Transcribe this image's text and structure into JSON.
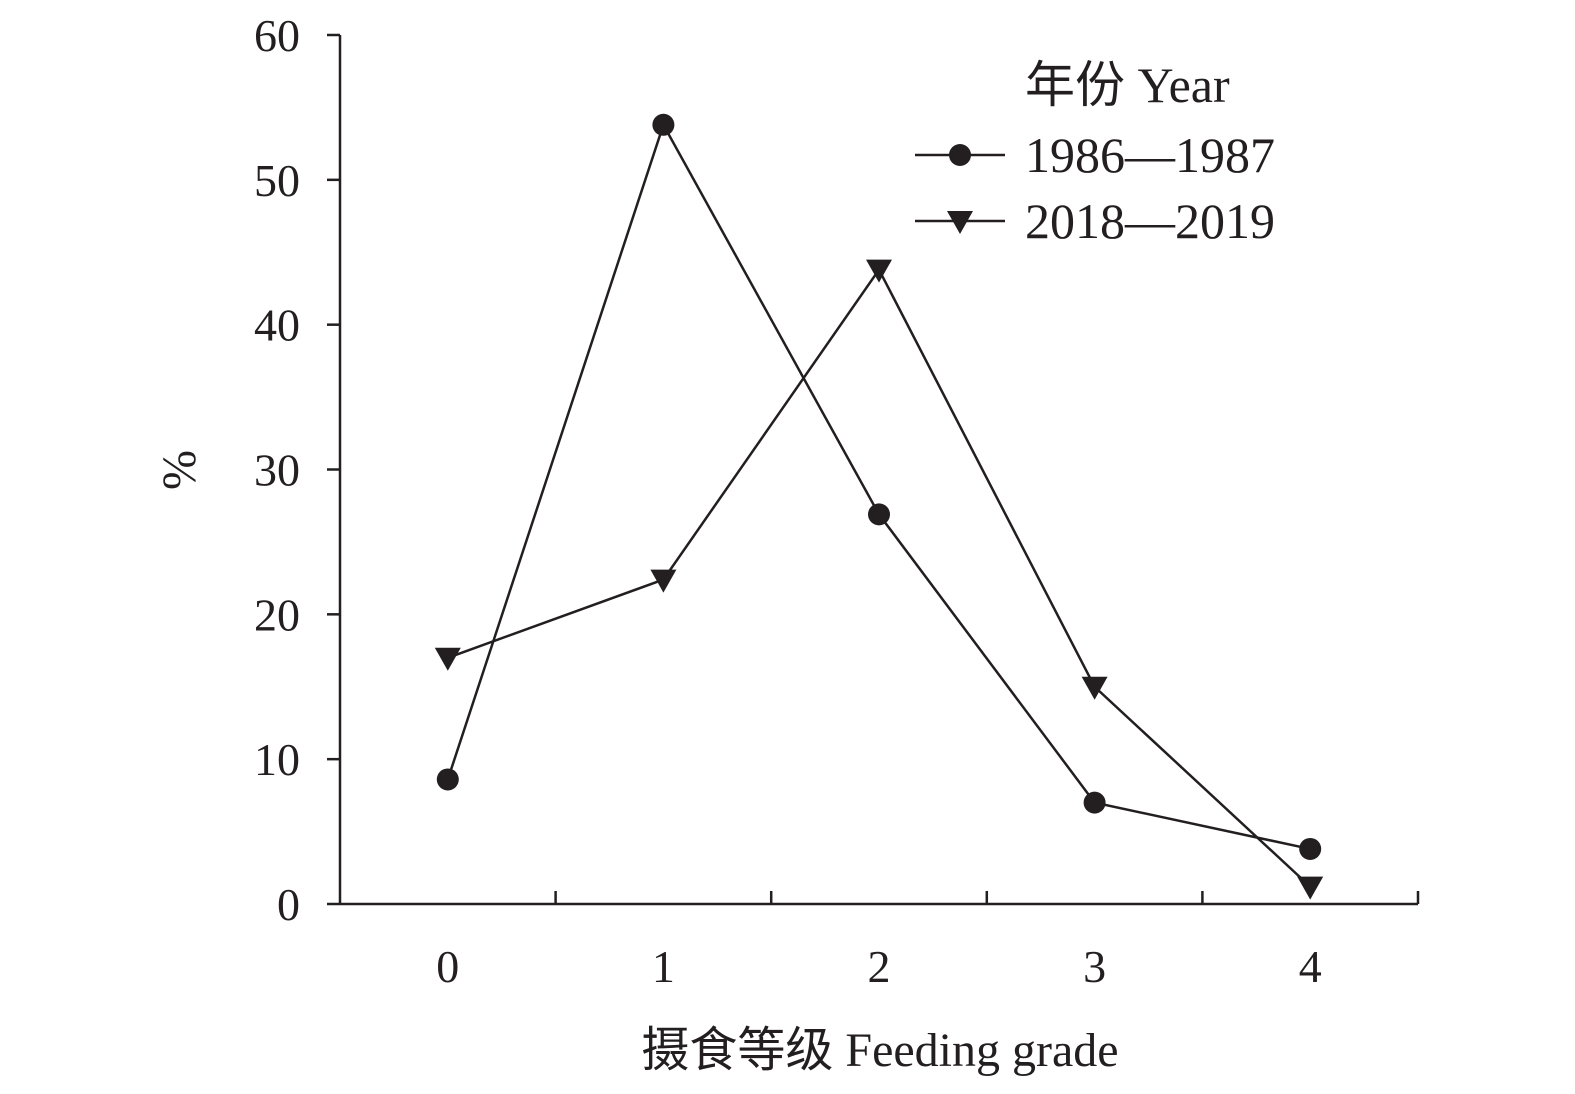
{
  "chart_data": {
    "type": "line",
    "title": "",
    "xlabel": "摄食等级 Feeding grade",
    "ylabel": "%",
    "categories": [
      "0",
      "1",
      "2",
      "3",
      "4"
    ],
    "ylim": [
      0,
      60
    ],
    "yticks": [
      "0",
      "10",
      "20",
      "30",
      "40",
      "50",
      "60"
    ],
    "grid": false,
    "legend": {
      "title": "年份 Year",
      "placement": "top-right"
    },
    "series": [
      {
        "name": "1986—1987",
        "marker": "circle",
        "values": [
          8.6,
          53.8,
          26.9,
          7.0,
          3.8
        ]
      },
      {
        "name": "2018—2019",
        "marker": "triangle-down",
        "values": [
          17.0,
          22.4,
          43.8,
          15.0,
          1.2
        ]
      }
    ],
    "colors": {
      "ink": "#231f20"
    }
  }
}
